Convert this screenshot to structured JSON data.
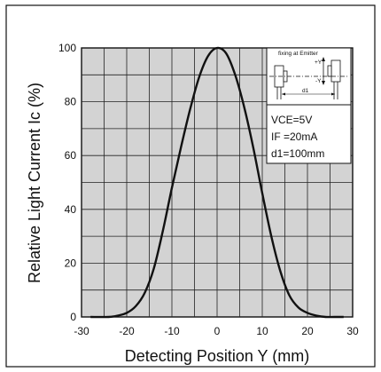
{
  "chart_data": {
    "type": "line",
    "title": "",
    "xlabel": "Detecting Position    Y (mm)",
    "ylabel": "Relative Light Current  Ic (%)",
    "xlim": [
      -30,
      30
    ],
    "ylim": [
      0,
      100
    ],
    "x_ticks": [
      "-30",
      "-20",
      "-10",
      "0",
      "10",
      "20",
      "30"
    ],
    "y_ticks": [
      "0",
      "20",
      "40",
      "60",
      "80",
      "100"
    ],
    "grid": true,
    "series": [
      {
        "x": [
          -28,
          -24,
          -22,
          -20,
          -18,
          -16,
          -14,
          -12,
          -10,
          -8,
          -6,
          -4,
          -2,
          0,
          2,
          4,
          6,
          8,
          10,
          12,
          14,
          16,
          18,
          20,
          22,
          24,
          26,
          28
        ],
        "y": [
          0,
          0,
          0.5,
          1.5,
          4,
          9,
          18,
          32,
          48,
          63,
          77,
          89,
          97,
          100,
          98,
          90,
          78,
          63,
          46,
          30,
          17,
          8,
          3.5,
          1.5,
          0.5,
          0,
          0,
          0
        ]
      }
    ],
    "annotations": {
      "inset_title": "fixing at Emitter",
      "inset_plus_y": "+Y",
      "inset_minus_y": "-Y",
      "inset_d1": "d1",
      "conditions": [
        "VCE=5V",
        "IF =20mA",
        "d1=100mm"
      ]
    }
  }
}
